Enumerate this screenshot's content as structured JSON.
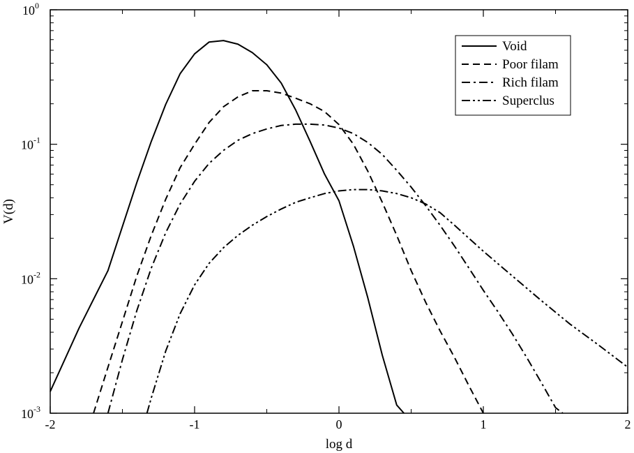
{
  "chart_data": {
    "type": "line",
    "xlabel": "log d",
    "ylabel": "V(d)",
    "xlim": [
      -2,
      2
    ],
    "ylim": [
      0.001,
      1
    ],
    "yscale": "log",
    "grid": false,
    "legend_position": "top-right",
    "x_ticks": [
      {
        "value": -2,
        "label": "-2"
      },
      {
        "value": -1,
        "label": "-1"
      },
      {
        "value": 0,
        "label": "0"
      },
      {
        "value": 1,
        "label": "1"
      },
      {
        "value": 2,
        "label": "2"
      }
    ],
    "y_ticks": [
      {
        "value": 0.001,
        "base": "10",
        "exp": "-3"
      },
      {
        "value": 0.01,
        "base": "10",
        "exp": "-2"
      },
      {
        "value": 0.1,
        "base": "10",
        "exp": "-1"
      },
      {
        "value": 1,
        "base": "10",
        "exp": "0"
      }
    ],
    "series": [
      {
        "name": "Void",
        "style": "solid",
        "x": [
          -2.0,
          -1.8,
          -1.6,
          -1.4,
          -1.3,
          -1.2,
          -1.1,
          -1.0,
          -0.9,
          -0.8,
          -0.7,
          -0.6,
          -0.5,
          -0.4,
          -0.3,
          -0.2,
          -0.1,
          0.0,
          0.1,
          0.2,
          0.3,
          0.4,
          0.45
        ],
        "y": [
          0.00145,
          0.0043,
          0.0115,
          0.052,
          0.105,
          0.198,
          0.335,
          0.47,
          0.575,
          0.59,
          0.555,
          0.48,
          0.39,
          0.285,
          0.18,
          0.105,
          0.06,
          0.038,
          0.0175,
          0.0072,
          0.0027,
          0.00115,
          0.001
        ]
      },
      {
        "name": "Poor filam",
        "style": "dashed",
        "x": [
          -1.7,
          -1.6,
          -1.5,
          -1.4,
          -1.3,
          -1.2,
          -1.1,
          -1.0,
          -0.9,
          -0.8,
          -0.7,
          -0.6,
          -0.5,
          -0.4,
          -0.3,
          -0.2,
          -0.1,
          0.0,
          0.1,
          0.2,
          0.3,
          0.4,
          0.5,
          0.6,
          0.7,
          0.8,
          0.9,
          1.0
        ],
        "y": [
          0.001,
          0.0022,
          0.0048,
          0.0105,
          0.021,
          0.039,
          0.067,
          0.1,
          0.145,
          0.19,
          0.225,
          0.25,
          0.25,
          0.24,
          0.22,
          0.2,
          0.175,
          0.14,
          0.1,
          0.063,
          0.037,
          0.021,
          0.0115,
          0.0067,
          0.0041,
          0.0026,
          0.0016,
          0.001
        ]
      },
      {
        "name": "Rich filam",
        "style": "dashdot",
        "x": [
          -1.6,
          -1.5,
          -1.4,
          -1.3,
          -1.2,
          -1.1,
          -1.0,
          -0.9,
          -0.8,
          -0.7,
          -0.6,
          -0.5,
          -0.4,
          -0.3,
          -0.2,
          -0.1,
          0.0,
          0.1,
          0.2,
          0.3,
          0.4,
          0.5,
          0.6,
          0.7,
          0.8,
          0.9,
          1.0,
          1.1,
          1.2,
          1.3,
          1.4,
          1.5,
          1.55
        ],
        "y": [
          0.001,
          0.0025,
          0.0058,
          0.012,
          0.022,
          0.036,
          0.053,
          0.072,
          0.09,
          0.107,
          0.12,
          0.13,
          0.138,
          0.141,
          0.141,
          0.139,
          0.132,
          0.12,
          0.103,
          0.084,
          0.064,
          0.048,
          0.035,
          0.025,
          0.0175,
          0.012,
          0.0082,
          0.0057,
          0.0039,
          0.0026,
          0.0017,
          0.0011,
          0.001
        ]
      },
      {
        "name": "Superclus",
        "style": "dashdotdot",
        "x": [
          -1.33,
          -1.3,
          -1.2,
          -1.1,
          -1.0,
          -0.9,
          -0.8,
          -0.7,
          -0.6,
          -0.5,
          -0.4,
          -0.3,
          -0.2,
          -0.1,
          0.0,
          0.1,
          0.2,
          0.3,
          0.4,
          0.5,
          0.6,
          0.7,
          0.8,
          0.9,
          1.0,
          1.2,
          1.4,
          1.6,
          1.8,
          2.0
        ],
        "y": [
          0.001,
          0.0013,
          0.0029,
          0.0055,
          0.009,
          0.013,
          0.017,
          0.021,
          0.025,
          0.029,
          0.033,
          0.037,
          0.04,
          0.043,
          0.045,
          0.046,
          0.046,
          0.045,
          0.043,
          0.04,
          0.036,
          0.031,
          0.025,
          0.02,
          0.016,
          0.0105,
          0.0069,
          0.0046,
          0.0032,
          0.0022
        ]
      }
    ]
  }
}
